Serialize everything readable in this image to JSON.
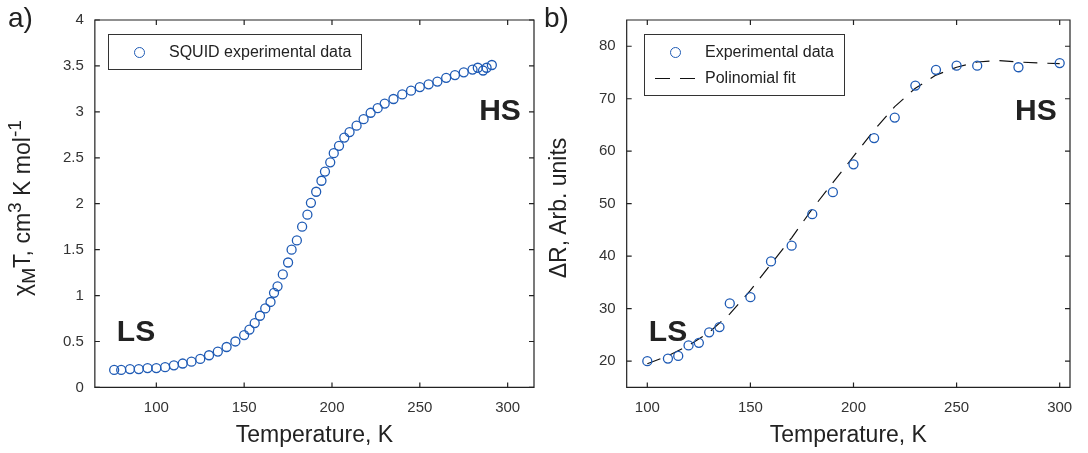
{
  "chart_data": [
    {
      "type": "scatter",
      "title": "a)",
      "xlabel": "Temperature, K",
      "ylabel": "χ$_{M}$T, cm$^{3}$ K mol$^{-1}$",
      "xlim": [
        65,
        315
      ],
      "ylim": [
        0,
        4
      ],
      "xticks": [
        100,
        150,
        200,
        250,
        300
      ],
      "yticks": [
        0,
        0.5,
        1,
        1.5,
        2,
        2.5,
        3,
        3.5,
        4
      ],
      "grid": false,
      "legend": "top left",
      "annotations": [
        "LS",
        "HS"
      ],
      "series": [
        {
          "name": "SQUID experimental data",
          "marker": "circle",
          "color": "#1f5bb5",
          "x": [
            76,
            80,
            85,
            90,
            95,
            100,
            105,
            110,
            115,
            120,
            125,
            130,
            135,
            140,
            145,
            150,
            153,
            156,
            159,
            162,
            165,
            167,
            169,
            172,
            175,
            177,
            180,
            183,
            186,
            188,
            191,
            194,
            196,
            199,
            201,
            204,
            207,
            210,
            214,
            218,
            222,
            226,
            230,
            235,
            240,
            245,
            250,
            255,
            260,
            265,
            270,
            275,
            280,
            283,
            286,
            288,
            291
          ],
          "values": [
            0.19,
            0.19,
            0.2,
            0.2,
            0.21,
            0.21,
            0.22,
            0.24,
            0.26,
            0.28,
            0.31,
            0.35,
            0.39,
            0.44,
            0.5,
            0.57,
            0.63,
            0.7,
            0.78,
            0.86,
            0.93,
            1.03,
            1.1,
            1.23,
            1.36,
            1.5,
            1.6,
            1.75,
            1.88,
            2.01,
            2.13,
            2.25,
            2.35,
            2.45,
            2.55,
            2.63,
            2.72,
            2.78,
            2.85,
            2.92,
            2.99,
            3.04,
            3.09,
            3.14,
            3.19,
            3.23,
            3.27,
            3.3,
            3.33,
            3.37,
            3.4,
            3.43,
            3.46,
            3.48,
            3.45,
            3.48,
            3.51
          ]
        }
      ]
    },
    {
      "type": "scatter",
      "title": "b)",
      "xlabel": "Temperature, K",
      "ylabel": "ΔR, Arb. units",
      "xlim": [
        90,
        305
      ],
      "ylim": [
        15,
        85
      ],
      "xticks": [
        100,
        150,
        200,
        250,
        300
      ],
      "yticks": [
        20,
        30,
        40,
        50,
        60,
        70,
        80
      ],
      "grid": false,
      "legend": "top left",
      "annotations": [
        "LS",
        "HS"
      ],
      "series": [
        {
          "name": "Experimental data",
          "marker": "circle",
          "color": "#1f5bb5",
          "x": [
            100,
            110,
            115,
            120,
            125,
            130,
            135,
            140,
            150,
            160,
            170,
            180,
            190,
            200,
            210,
            220,
            230,
            240,
            250,
            260,
            280,
            300
          ],
          "values": [
            20,
            20.5,
            21,
            23,
            23.5,
            25.5,
            26.5,
            31,
            32.2,
            39,
            42,
            48,
            52.2,
            57.5,
            62.5,
            66.4,
            72.5,
            75.5,
            76.3,
            76.3,
            76,
            76.8
          ]
        },
        {
          "name": "Polinomial fit",
          "type": "line",
          "marker": "none",
          "color": "#111111",
          "line_style": "dashed",
          "x": [
            100,
            110,
            120,
            130,
            140,
            150,
            160,
            170,
            180,
            190,
            200,
            210,
            220,
            230,
            240,
            250,
            260,
            270,
            280,
            290,
            300
          ],
          "values": [
            19.5,
            21,
            23,
            25.5,
            29,
            33.5,
            38.5,
            43.5,
            49,
            54,
            59,
            64,
            68.5,
            72,
            74.5,
            76,
            77,
            77.3,
            77,
            76.8,
            76.7
          ]
        }
      ]
    }
  ]
}
